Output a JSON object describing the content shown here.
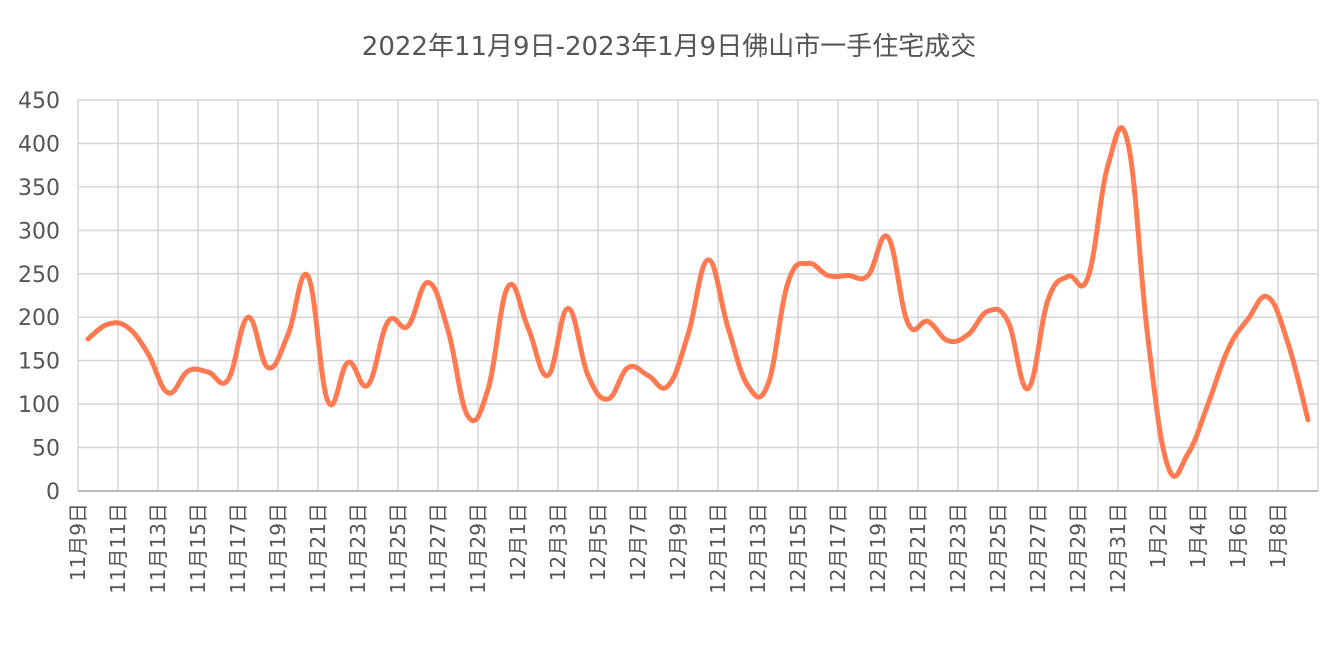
{
  "chart_data": {
    "type": "line",
    "title": "2022年11月9日-2023年1月9日佛山市一手住宅成交",
    "xlabel": "",
    "ylabel": "",
    "ylim": [
      0,
      450
    ],
    "yticks": [
      0,
      50,
      100,
      150,
      200,
      250,
      300,
      350,
      400,
      450
    ],
    "grid": true,
    "line_color": "#FF7A50",
    "x": [
      "11月9日",
      "11月10日",
      "11月11日",
      "11月12日",
      "11月13日",
      "11月14日",
      "11月15日",
      "11月16日",
      "11月17日",
      "11月18日",
      "11月19日",
      "11月20日",
      "11月21日",
      "11月22日",
      "11月23日",
      "11月24日",
      "11月25日",
      "11月26日",
      "11月27日",
      "11月28日",
      "11月29日",
      "11月30日",
      "12月1日",
      "12月2日",
      "12月3日",
      "12月4日",
      "12月5日",
      "12月6日",
      "12月7日",
      "12月8日",
      "12月9日",
      "12月10日",
      "12月11日",
      "12月12日",
      "12月13日",
      "12月14日",
      "12月15日",
      "12月16日",
      "12月17日",
      "12月18日",
      "12月19日",
      "12月20日",
      "12月21日",
      "12月22日",
      "12月23日",
      "12月24日",
      "12月25日",
      "12月26日",
      "12月27日",
      "12月28日",
      "12月29日",
      "12月30日",
      "12月31日",
      "1月1日",
      "1月2日",
      "1月3日",
      "1月4日",
      "1月5日",
      "1月6日",
      "1月7日",
      "1月8日",
      "1月9日"
    ],
    "tick_labels": [
      "11月9日",
      "11月11日",
      "11月13日",
      "11月15日",
      "11月17日",
      "11月19日",
      "11月21日",
      "11月23日",
      "11月25日",
      "11月27日",
      "11月29日",
      "12月1日",
      "12月3日",
      "12月5日",
      "12月7日",
      "12月9日",
      "12月11日",
      "12月13日",
      "12月15日",
      "12月17日",
      "12月19日",
      "12月21日",
      "12月23日",
      "12月25日",
      "12月27日",
      "12月29日",
      "12月31日",
      "1月2日",
      "1月4日",
      "1月6日",
      "1月8日"
    ],
    "series": [
      {
        "name": "",
        "values": [
          175,
          192,
          188,
          158,
          113,
          138,
          137,
          128,
          200,
          142,
          180,
          247,
          103,
          148,
          122,
          195,
          190,
          240,
          185,
          86,
          117,
          235,
          188,
          133,
          210,
          133,
          106,
          142,
          133,
          121,
          180,
          266,
          188,
          121,
          123,
          240,
          262,
          248,
          248,
          248,
          292,
          193,
          195,
          173,
          180,
          207,
          195,
          118,
          220,
          247,
          246,
          375,
          400,
          175,
          28,
          43,
          100,
          163,
          198,
          223,
          170,
          82
        ]
      }
    ]
  }
}
